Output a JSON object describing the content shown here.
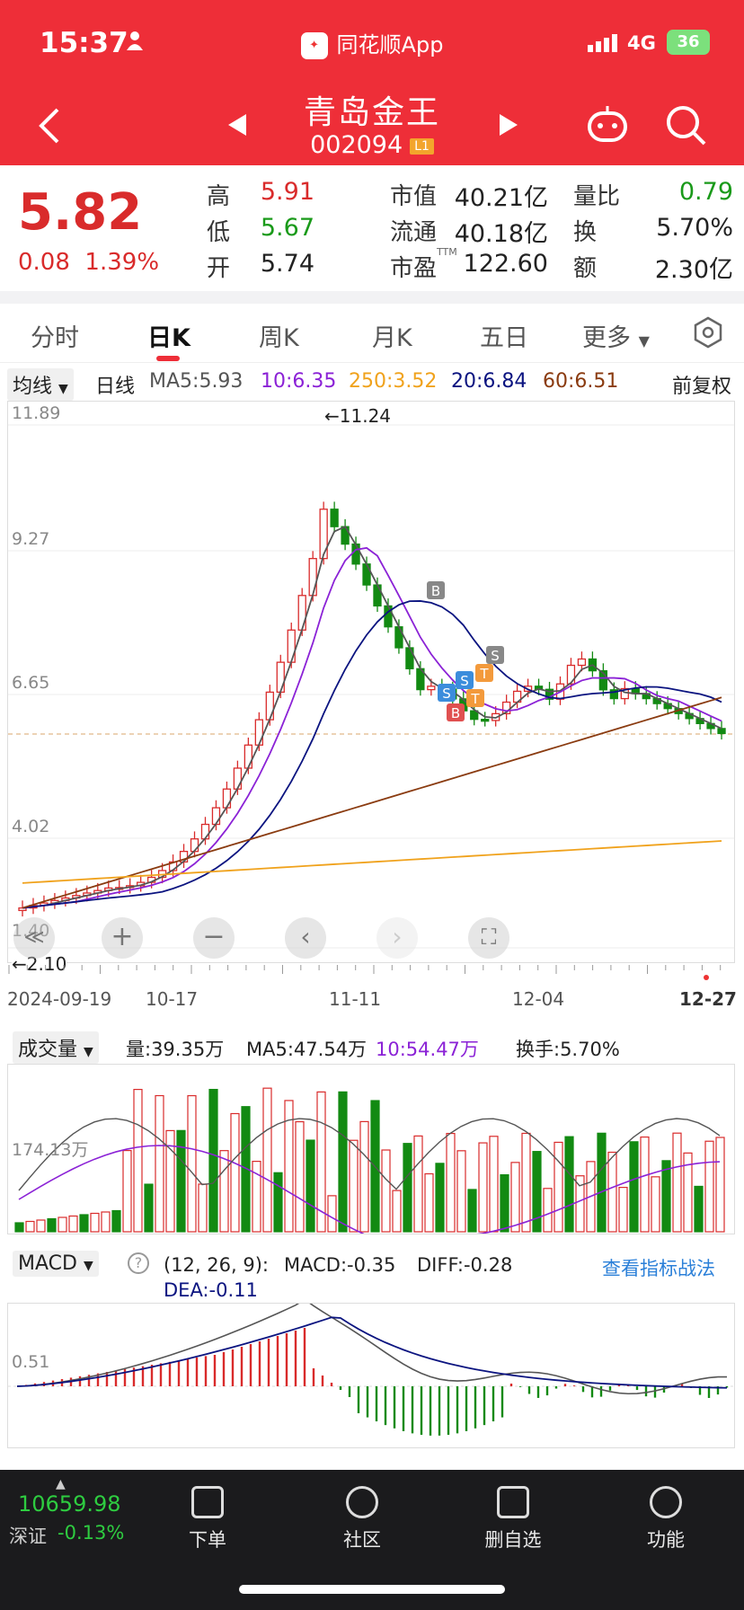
{
  "status_bar": {
    "time": "15:37",
    "app_name": "同花顺App",
    "network": "4G",
    "battery": "36"
  },
  "header": {
    "stock_name": "青岛金王",
    "stock_code": "002094",
    "badge": "L1"
  },
  "quote": {
    "price": "5.82",
    "change": "0.08",
    "change_pct": "1.39%",
    "items": [
      {
        "label": "高",
        "value": "5.91",
        "color": "#d92b2b"
      },
      {
        "label": "市值",
        "value": "40.21亿",
        "color": "#222"
      },
      {
        "label": "量比",
        "value": "0.79",
        "color": "#1a9a1a"
      },
      {
        "label": "低",
        "value": "5.67",
        "color": "#1a9a1a"
      },
      {
        "label": "流通",
        "value": "40.18亿",
        "color": "#222"
      },
      {
        "label": "换",
        "value": "5.70%",
        "color": "#222"
      },
      {
        "label": "开",
        "value": "5.74",
        "color": "#222"
      },
      {
        "label": "市盈",
        "sup": "TTM",
        "value": "122.60",
        "color": "#222"
      },
      {
        "label": "额",
        "value": "2.30亿",
        "color": "#222"
      }
    ]
  },
  "tabs": [
    "分时",
    "日K",
    "周K",
    "月K",
    "五日",
    "更多"
  ],
  "ma_bar": {
    "selector": "均线",
    "period": "日线",
    "ma5": "MA5:5.93",
    "ma10": "10:6.35",
    "ma250": "250:3.52",
    "ma20": "20:6.84",
    "ma60": "60:6.51",
    "adjust": "前复权"
  },
  "kline": {
    "y_ticks": [
      "11.89",
      "9.27",
      "6.65",
      "4.02",
      "1.40"
    ],
    "high_mark": "←11.24",
    "low_mark": "←2.10",
    "x_ticks": [
      "2024-09-19",
      "10-17",
      "11-11",
      "12-04",
      "12-27"
    ],
    "markers": [
      "B",
      "S",
      "S",
      "T",
      "T",
      "S",
      "B"
    ]
  },
  "volume": {
    "selector": "成交量",
    "vol": "量:39.35万",
    "ma5": "MA5:47.54万",
    "ma10": "10:54.47万",
    "turnover": "换手:5.70%",
    "y_tick": "174.13万"
  },
  "macd": {
    "selector": "MACD",
    "help": "?",
    "params": "(12, 26, 9):",
    "macd": "MACD:-0.35",
    "diff": "DIFF:-0.28",
    "dea": "DEA:-0.11",
    "link": "查看指标战法",
    "y_tick": "0.51"
  },
  "bottom_nav": {
    "index_value": "10659.98",
    "index_name": "深证",
    "index_change": "-0.13%",
    "items": [
      "下单",
      "社区",
      "删自选",
      "功能"
    ]
  },
  "colors": {
    "up": "#d92b2b",
    "down": "#128a12",
    "ma5": "#555555",
    "ma10": "#8b22d6",
    "ma20": "#0b1480",
    "ma60": "#8a3b10",
    "ma250": "#f0a21c"
  }
}
